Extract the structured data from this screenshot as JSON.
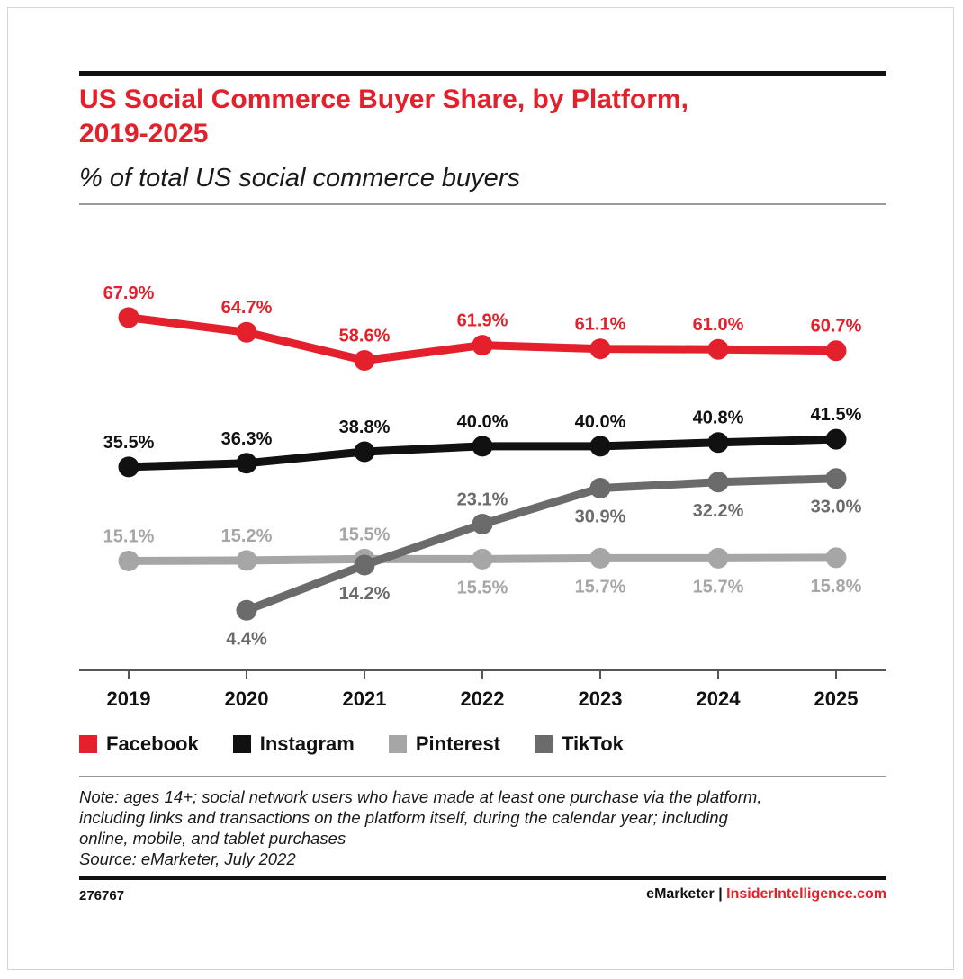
{
  "header": {
    "title_line1": "US Social Commerce Buyer Share, by Platform,",
    "title_line2": "2019-2025",
    "subtitle": "% of total US social commerce buyers"
  },
  "chart_data": {
    "type": "line",
    "title": "US Social Commerce Buyer Share, by Platform, 2019-2025",
    "subtitle": "% of total US social commerce buyers",
    "x": [
      "2019",
      "2020",
      "2021",
      "2022",
      "2023",
      "2024",
      "2025"
    ],
    "xlabel": "",
    "ylabel": "",
    "ylim": [
      0,
      70
    ],
    "grid": false,
    "legend_position": "bottom",
    "series": [
      {
        "name": "Facebook",
        "color": "#e3202b",
        "values": [
          67.9,
          64.7,
          58.6,
          61.9,
          61.1,
          61.0,
          60.7
        ],
        "labels": [
          "67.9%",
          "64.7%",
          "58.6%",
          "61.9%",
          "61.1%",
          "61.0%",
          "60.7%"
        ]
      },
      {
        "name": "Instagram",
        "color": "#111111",
        "values": [
          35.5,
          36.3,
          38.8,
          40.0,
          40.0,
          40.8,
          41.5
        ],
        "labels": [
          "35.5%",
          "36.3%",
          "38.8%",
          "40.0%",
          "40.0%",
          "40.8%",
          "41.5%"
        ]
      },
      {
        "name": "Pinterest",
        "color": "#a6a6a6",
        "values": [
          15.1,
          15.2,
          15.5,
          15.5,
          15.7,
          15.7,
          15.8
        ],
        "labels": [
          "15.1%",
          "15.2%",
          "15.5%",
          "15.5%",
          "15.7%",
          "15.7%",
          "15.8%"
        ]
      },
      {
        "name": "TikTok",
        "color": "#6b6b6b",
        "values": [
          null,
          4.4,
          14.2,
          23.1,
          30.9,
          32.2,
          33.0
        ],
        "labels": [
          null,
          "4.4%",
          "14.2%",
          "23.1%",
          "30.9%",
          "32.2%",
          "33.0%"
        ]
      }
    ]
  },
  "footer": {
    "note_lines": [
      "Note: ages 14+; social network users who have made at least one purchase via the platform,",
      "including links and transactions on the platform itself, during the calendar year; including",
      "online, mobile, and tablet purchases",
      "Source: eMarketer, July 2022"
    ],
    "chart_id": "276767",
    "brand": "eMarketer",
    "separator": "|",
    "site": "InsiderIntelligence.com"
  }
}
